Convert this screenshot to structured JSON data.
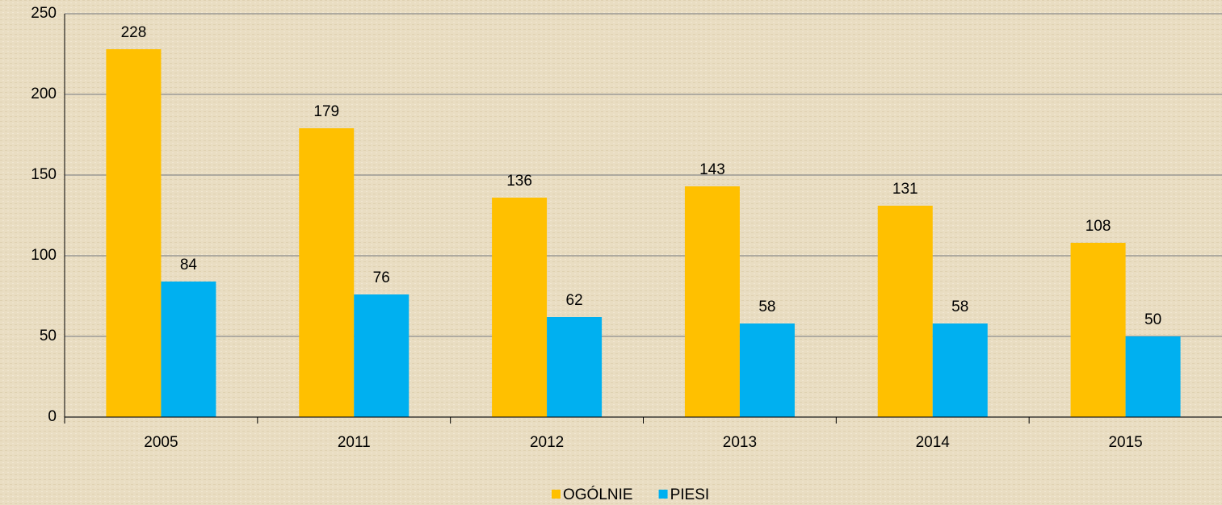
{
  "chart_data": {
    "type": "bar",
    "categories": [
      "2005",
      "2011",
      "2012",
      "2013",
      "2014",
      "2015"
    ],
    "series": [
      {
        "name": "OGÓLNIE",
        "color": "#ffc000",
        "values": [
          228,
          179,
          136,
          143,
          131,
          108
        ]
      },
      {
        "name": "PIESI",
        "color": "#00b0f0",
        "values": [
          84,
          76,
          62,
          58,
          58,
          50
        ]
      }
    ],
    "ylim": [
      0,
      250
    ],
    "yticks": [
      0,
      50,
      100,
      150,
      200,
      250
    ],
    "grid": true,
    "legend": "bottom"
  }
}
